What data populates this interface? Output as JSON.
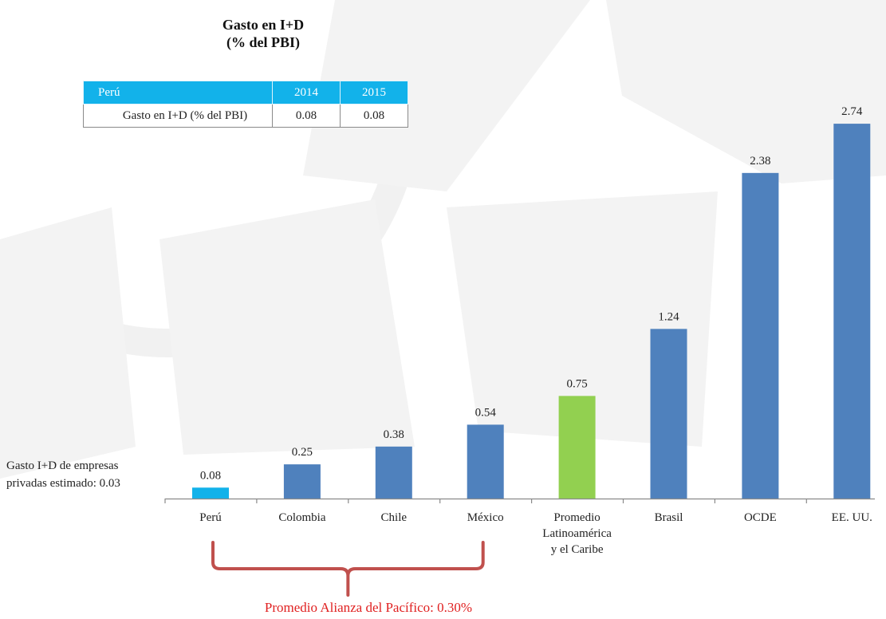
{
  "title_lines": [
    "Gasto en I+D",
    "(% del PBI)"
  ],
  "table": {
    "headers": [
      "Perú",
      "2014",
      "2015"
    ],
    "row": [
      "Gasto en I+D (% del PBI)",
      "0.08",
      "0.08"
    ]
  },
  "side_note_lines": [
    "Gasto I+D de empresas",
    "privadas estimado: 0.03"
  ],
  "bracket_label": "Promedio Alianza del Pacífico: 0.30%",
  "colors": {
    "default_bar": "#4f81bd",
    "peru_bar": "#12b2ea",
    "average_bar": "#92d050",
    "bracket": "#c0504d",
    "bracket_label": "#e02020",
    "table_header": "#12b2ea"
  },
  "chart_data": {
    "type": "bar",
    "categories": [
      "Perú",
      "Colombia",
      "Chile",
      "México",
      "Promedio Latinoamérica y el Caribe",
      "Brasil",
      "OCDE",
      "EE. UU."
    ],
    "category_label_lines": [
      [
        "Perú"
      ],
      [
        "Colombia"
      ],
      [
        "Chile"
      ],
      [
        "México"
      ],
      [
        "Promedio",
        "Latinoamérica",
        "y el Caribe"
      ],
      [
        "Brasil"
      ],
      [
        "OCDE"
      ],
      [
        "EE. UU."
      ]
    ],
    "values": [
      0.08,
      0.25,
      0.38,
      0.54,
      0.75,
      1.24,
      2.38,
      2.74
    ],
    "value_labels": [
      "0.08",
      "0.25",
      "0.38",
      "0.54",
      "0.75",
      "1.24",
      "2.38",
      "2.74"
    ],
    "bar_colors": [
      "peru_bar",
      "default_bar",
      "default_bar",
      "default_bar",
      "average_bar",
      "default_bar",
      "default_bar",
      "default_bar"
    ],
    "title": "Gasto en I+D (% del PBI)",
    "xlabel": "",
    "ylabel": "",
    "ylim": [
      0,
      2.74
    ],
    "grid": false,
    "legend": "none"
  }
}
